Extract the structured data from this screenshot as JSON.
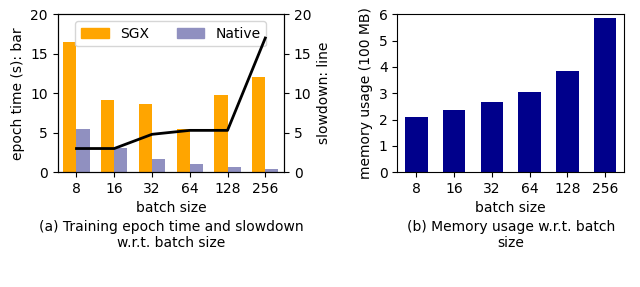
{
  "chart_data": [
    {
      "type": "bar",
      "title": "(a) Training epoch time and slowdown\nw.r.t. batch size",
      "x_label": "batch size",
      "y_label": "epoch time (s): bar",
      "y2_label": "slowdown: line",
      "categories": [
        "8",
        "16",
        "32",
        "64",
        "128",
        "256"
      ],
      "series": [
        {
          "name": "SGX",
          "type": "bar",
          "color": "#FFA500",
          "values": [
            16.5,
            9.2,
            8.7,
            5.5,
            9.8,
            12.0
          ]
        },
        {
          "name": "Native",
          "type": "bar",
          "color": "#9090C0",
          "values": [
            5.5,
            3.1,
            1.7,
            1.0,
            0.65,
            0.45
          ]
        },
        {
          "type": "line",
          "axis": "y2",
          "color": "black",
          "values": [
            3.0,
            3.0,
            4.8,
            5.3,
            5.3,
            17.0
          ]
        }
      ],
      "ylim": [
        0,
        20
      ],
      "yticks": [
        0,
        5,
        10,
        15,
        20
      ],
      "y2lim": [
        0,
        20
      ],
      "y2ticks": [
        0,
        5,
        10,
        15,
        20
      ],
      "legend": "upper center"
    },
    {
      "type": "bar",
      "title": "(b) Memory usage w.r.t. batch\nsize",
      "x_label": "batch size",
      "y_label": "memory usage (100 MB)",
      "categories": [
        "8",
        "16",
        "32",
        "64",
        "128",
        "256"
      ],
      "values": [
        2.1,
        2.35,
        2.65,
        3.05,
        3.85,
        5.85
      ],
      "color": "#00008B",
      "ylim": [
        0,
        6
      ],
      "yticks": [
        0,
        1,
        2,
        3,
        4,
        5,
        6
      ]
    }
  ]
}
